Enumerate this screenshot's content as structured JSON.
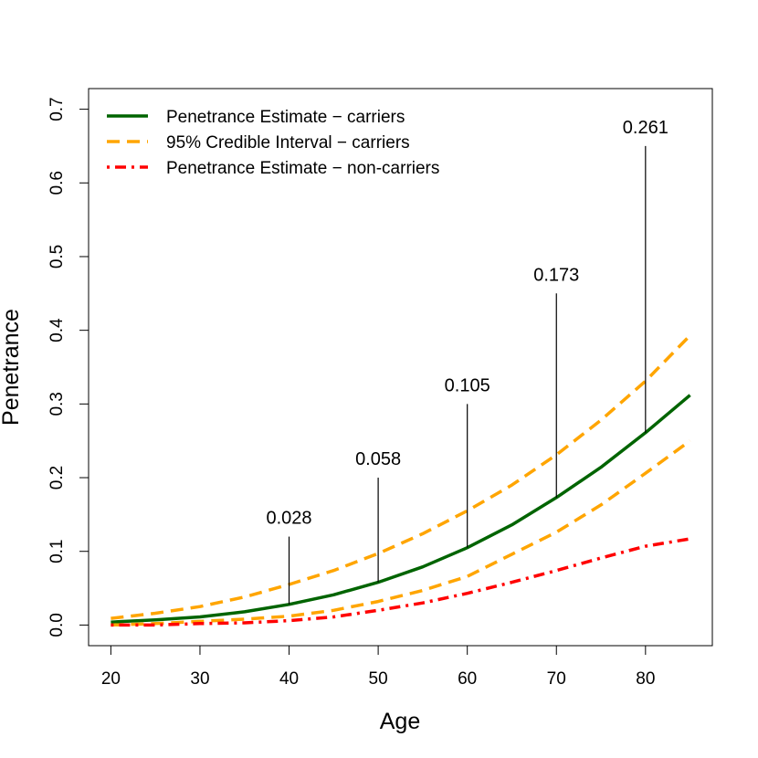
{
  "chart_data": {
    "type": "line",
    "title": "",
    "xlabel": "Age",
    "ylabel": "Penetrance",
    "xlim": [
      17.5,
      87.5
    ],
    "ylim": [
      -0.028,
      0.728
    ],
    "xticks": [
      "20",
      "30",
      "40",
      "50",
      "60",
      "70",
      "80"
    ],
    "yticks": [
      "0.0",
      "0.1",
      "0.2",
      "0.3",
      "0.4",
      "0.5",
      "0.6",
      "0.7"
    ],
    "grid": false,
    "legend_position": "top-left",
    "x": [
      20,
      25,
      30,
      35,
      40,
      45,
      50,
      55,
      60,
      65,
      70,
      75,
      80,
      85
    ],
    "series": [
      {
        "name": "Penetrance Estimate − carriers",
        "color": "#006400",
        "style": "solid",
        "values": [
          0.004,
          0.007,
          0.011,
          0.018,
          0.028,
          0.041,
          0.058,
          0.079,
          0.105,
          0.136,
          0.173,
          0.214,
          0.261,
          0.312
        ]
      },
      {
        "name": "95% Credible Interval − carriers",
        "color": "#FFA500",
        "style": "dashed",
        "values": [
          0.009,
          0.016,
          0.025,
          0.038,
          0.055,
          0.074,
          0.097,
          0.124,
          0.155,
          0.19,
          0.231,
          0.278,
          0.331,
          0.393
        ]
      },
      {
        "name": "",
        "color": "#FFA500",
        "style": "dashed",
        "values": [
          0.0,
          0.002,
          0.005,
          0.008,
          0.012,
          0.02,
          0.032,
          0.047,
          0.066,
          0.096,
          0.126,
          0.163,
          0.206,
          0.25
        ]
      },
      {
        "name": "Penetrance Estimate − non-carriers",
        "color": "#FF0000",
        "style": "dotdash",
        "values": [
          0.0,
          0.0,
          0.002,
          0.003,
          0.006,
          0.011,
          0.02,
          0.03,
          0.043,
          0.058,
          0.074,
          0.091,
          0.107,
          0.117
        ]
      }
    ],
    "annotations": [
      {
        "x": 40,
        "y_start": 0.028,
        "y_end": 0.12,
        "label": "0.028"
      },
      {
        "x": 50,
        "y_start": 0.058,
        "y_end": 0.2,
        "label": "0.058"
      },
      {
        "x": 60,
        "y_start": 0.105,
        "y_end": 0.3,
        "label": "0.105"
      },
      {
        "x": 70,
        "y_start": 0.173,
        "y_end": 0.45,
        "label": "0.173"
      },
      {
        "x": 80,
        "y_start": 0.261,
        "y_end": 0.65,
        "label": "0.261"
      }
    ],
    "legend": [
      {
        "label": "Penetrance Estimate − carriers",
        "color": "#006400",
        "style": "solid"
      },
      {
        "label": "95% Credible Interval − carriers",
        "color": "#FFA500",
        "style": "dashed"
      },
      {
        "label": "Penetrance Estimate − non-carriers",
        "color": "#FF0000",
        "style": "dotdash"
      }
    ]
  }
}
